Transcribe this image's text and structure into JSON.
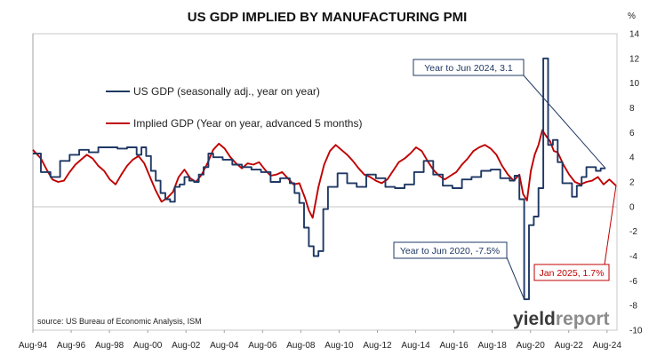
{
  "chart_data": {
    "type": "line",
    "title": "US GDP IMPLIED BY MANUFACTURING PMI",
    "ylabel": "%",
    "ylim": [
      -10,
      14
    ],
    "yticks": [
      -10,
      -8,
      -6,
      -4,
      -2,
      0,
      2,
      4,
      6,
      8,
      10,
      12,
      14
    ],
    "xlim": [
      1994.58,
      2025.1
    ],
    "xtick_labels": [
      "Aug-94",
      "Aug-96",
      "Aug-98",
      "Aug-00",
      "Aug-02",
      "Aug-04",
      "Aug-06",
      "Aug-08",
      "Aug-10",
      "Aug-12",
      "Aug-14",
      "Aug-16",
      "Aug-18",
      "Aug-20",
      "Aug-22",
      "Aug-24"
    ],
    "xtick_values": [
      1994.58,
      1996.58,
      1998.58,
      2000.58,
      2002.58,
      2004.58,
      2006.58,
      2008.58,
      2010.58,
      2012.58,
      2014.58,
      2016.58,
      2018.58,
      2020.58,
      2022.58,
      2024.58
    ],
    "grid": false,
    "legend_position": "top-left",
    "series": [
      {
        "name": "US GDP (seasonally adj., year on year)",
        "color": "#1f3864",
        "step": true,
        "x": [
          1994.58,
          1995.0,
          1995.5,
          1996.0,
          1996.5,
          1997.0,
          1997.5,
          1998.0,
          1998.5,
          1999.0,
          1999.5,
          2000.0,
          2000.25,
          2000.5,
          2000.75,
          2001.0,
          2001.25,
          2001.5,
          2001.75,
          2002.0,
          2002.25,
          2002.5,
          2002.75,
          2003.0,
          2003.25,
          2003.5,
          2003.75,
          2004.0,
          2004.5,
          2005.0,
          2005.5,
          2006.0,
          2006.5,
          2007.0,
          2007.5,
          2008.0,
          2008.25,
          2008.5,
          2008.75,
          2009.0,
          2009.25,
          2009.5,
          2009.75,
          2010.0,
          2010.5,
          2011.0,
          2011.5,
          2012.0,
          2012.5,
          2013.0,
          2013.5,
          2014.0,
          2014.5,
          2015.0,
          2015.5,
          2016.0,
          2016.5,
          2017.0,
          2017.5,
          2018.0,
          2018.5,
          2019.0,
          2019.5,
          2019.75,
          2020.0,
          2020.25,
          2020.5,
          2020.75,
          2021.0,
          2021.25,
          2021.5,
          2021.75,
          2022.0,
          2022.25,
          2022.5,
          2022.75,
          2023.0,
          2023.25,
          2023.5,
          2023.75,
          2024.0,
          2024.25,
          2024.5
        ],
        "y": [
          4.3,
          2.8,
          2.4,
          3.7,
          4.2,
          4.6,
          4.4,
          4.8,
          4.8,
          4.7,
          4.8,
          4.2,
          4.8,
          4.1,
          2.9,
          2.1,
          1.1,
          0.6,
          0.4,
          1.6,
          1.8,
          2.4,
          2.1,
          2.0,
          2.6,
          3.2,
          4.3,
          4.0,
          3.8,
          3.4,
          3.2,
          3.0,
          2.8,
          2.0,
          2.3,
          1.9,
          1.1,
          0.3,
          -1.7,
          -3.2,
          -4.0,
          -3.6,
          -0.2,
          1.6,
          2.7,
          1.9,
          1.6,
          2.6,
          2.3,
          1.6,
          1.5,
          1.8,
          2.8,
          3.7,
          2.6,
          1.7,
          1.5,
          2.2,
          2.4,
          2.9,
          3.0,
          2.3,
          2.1,
          2.5,
          0.6,
          -7.5,
          -1.5,
          -0.8,
          1.5,
          12.0,
          5.0,
          5.4,
          3.6,
          1.9,
          1.9,
          0.8,
          1.7,
          2.4,
          3.2,
          3.2,
          2.9,
          3.1,
          3.1
        ]
      },
      {
        "name": "Implied GDP (Year on year, advanced 5 months)",
        "color": "#c00000",
        "step": false,
        "x": [
          1994.58,
          1995.0,
          1995.3,
          1995.6,
          1995.9,
          1996.2,
          1996.5,
          1996.8,
          1997.1,
          1997.4,
          1997.7,
          1998.0,
          1998.3,
          1998.6,
          1998.9,
          1999.2,
          1999.5,
          1999.8,
          2000.1,
          2000.4,
          2000.7,
          2001.0,
          2001.3,
          2001.6,
          2001.9,
          2002.2,
          2002.5,
          2002.8,
          2003.1,
          2003.4,
          2003.7,
          2004.0,
          2004.3,
          2004.6,
          2004.9,
          2005.2,
          2005.5,
          2005.8,
          2006.1,
          2006.4,
          2006.7,
          2007.0,
          2007.3,
          2007.6,
          2007.9,
          2008.2,
          2008.5,
          2008.8,
          2009.0,
          2009.2,
          2009.5,
          2009.8,
          2010.1,
          2010.4,
          2010.7,
          2011.0,
          2011.3,
          2011.6,
          2011.9,
          2012.2,
          2012.5,
          2012.8,
          2013.1,
          2013.4,
          2013.7,
          2014.0,
          2014.3,
          2014.6,
          2014.9,
          2015.2,
          2015.5,
          2015.8,
          2016.1,
          2016.4,
          2016.7,
          2017.0,
          2017.3,
          2017.6,
          2017.9,
          2018.2,
          2018.5,
          2018.8,
          2019.1,
          2019.4,
          2019.7,
          2020.0,
          2020.2,
          2020.4,
          2020.6,
          2020.8,
          2021.0,
          2021.2,
          2021.4,
          2021.6,
          2021.8,
          2022.0,
          2022.3,
          2022.6,
          2022.9,
          2023.2,
          2023.5,
          2023.8,
          2024.1,
          2024.4,
          2024.7,
          2025.05
        ],
        "y": [
          4.6,
          3.9,
          3.0,
          2.2,
          2.0,
          2.1,
          2.8,
          3.4,
          3.8,
          4.2,
          3.9,
          3.3,
          2.9,
          2.2,
          1.8,
          2.6,
          3.3,
          3.8,
          4.1,
          3.5,
          2.4,
          1.3,
          0.4,
          0.7,
          1.2,
          2.4,
          3.0,
          2.3,
          2.0,
          2.6,
          3.5,
          4.6,
          5.1,
          4.7,
          4.0,
          3.5,
          3.1,
          3.5,
          3.4,
          3.6,
          3.0,
          2.5,
          2.6,
          2.8,
          2.3,
          1.8,
          1.9,
          0.7,
          -0.3,
          -0.9,
          1.6,
          3.4,
          4.5,
          5.0,
          4.6,
          4.2,
          3.7,
          3.1,
          2.6,
          2.4,
          2.1,
          1.9,
          2.2,
          2.9,
          3.6,
          3.9,
          4.3,
          4.8,
          4.5,
          3.7,
          3.0,
          2.5,
          2.2,
          2.5,
          2.8,
          3.4,
          3.9,
          4.5,
          4.8,
          5.0,
          4.7,
          4.2,
          3.3,
          2.6,
          2.1,
          2.6,
          1.0,
          0.5,
          2.9,
          4.2,
          5.0,
          6.2,
          5.7,
          5.3,
          4.5,
          4.4,
          3.4,
          2.6,
          2.0,
          1.8,
          2.0,
          2.1,
          2.4,
          1.8,
          2.2,
          1.7
        ]
      }
    ],
    "annotations": [
      {
        "text": "Year to Jun 2024, 3.1",
        "color": "#1f3864",
        "x": 2024.5,
        "y": 3.1
      },
      {
        "text": "Year to Jun 2020, -7.5%",
        "color": "#1f3864",
        "x": 2020.25,
        "y": -7.5
      },
      {
        "text": "Jan 2025, 1.7%",
        "color": "#c00000",
        "x": 2025.05,
        "y": 1.7
      }
    ],
    "source": "source: US Bureau of Economic Analysis, ISM"
  },
  "brand": {
    "part1": "yield",
    "part2": "report"
  }
}
